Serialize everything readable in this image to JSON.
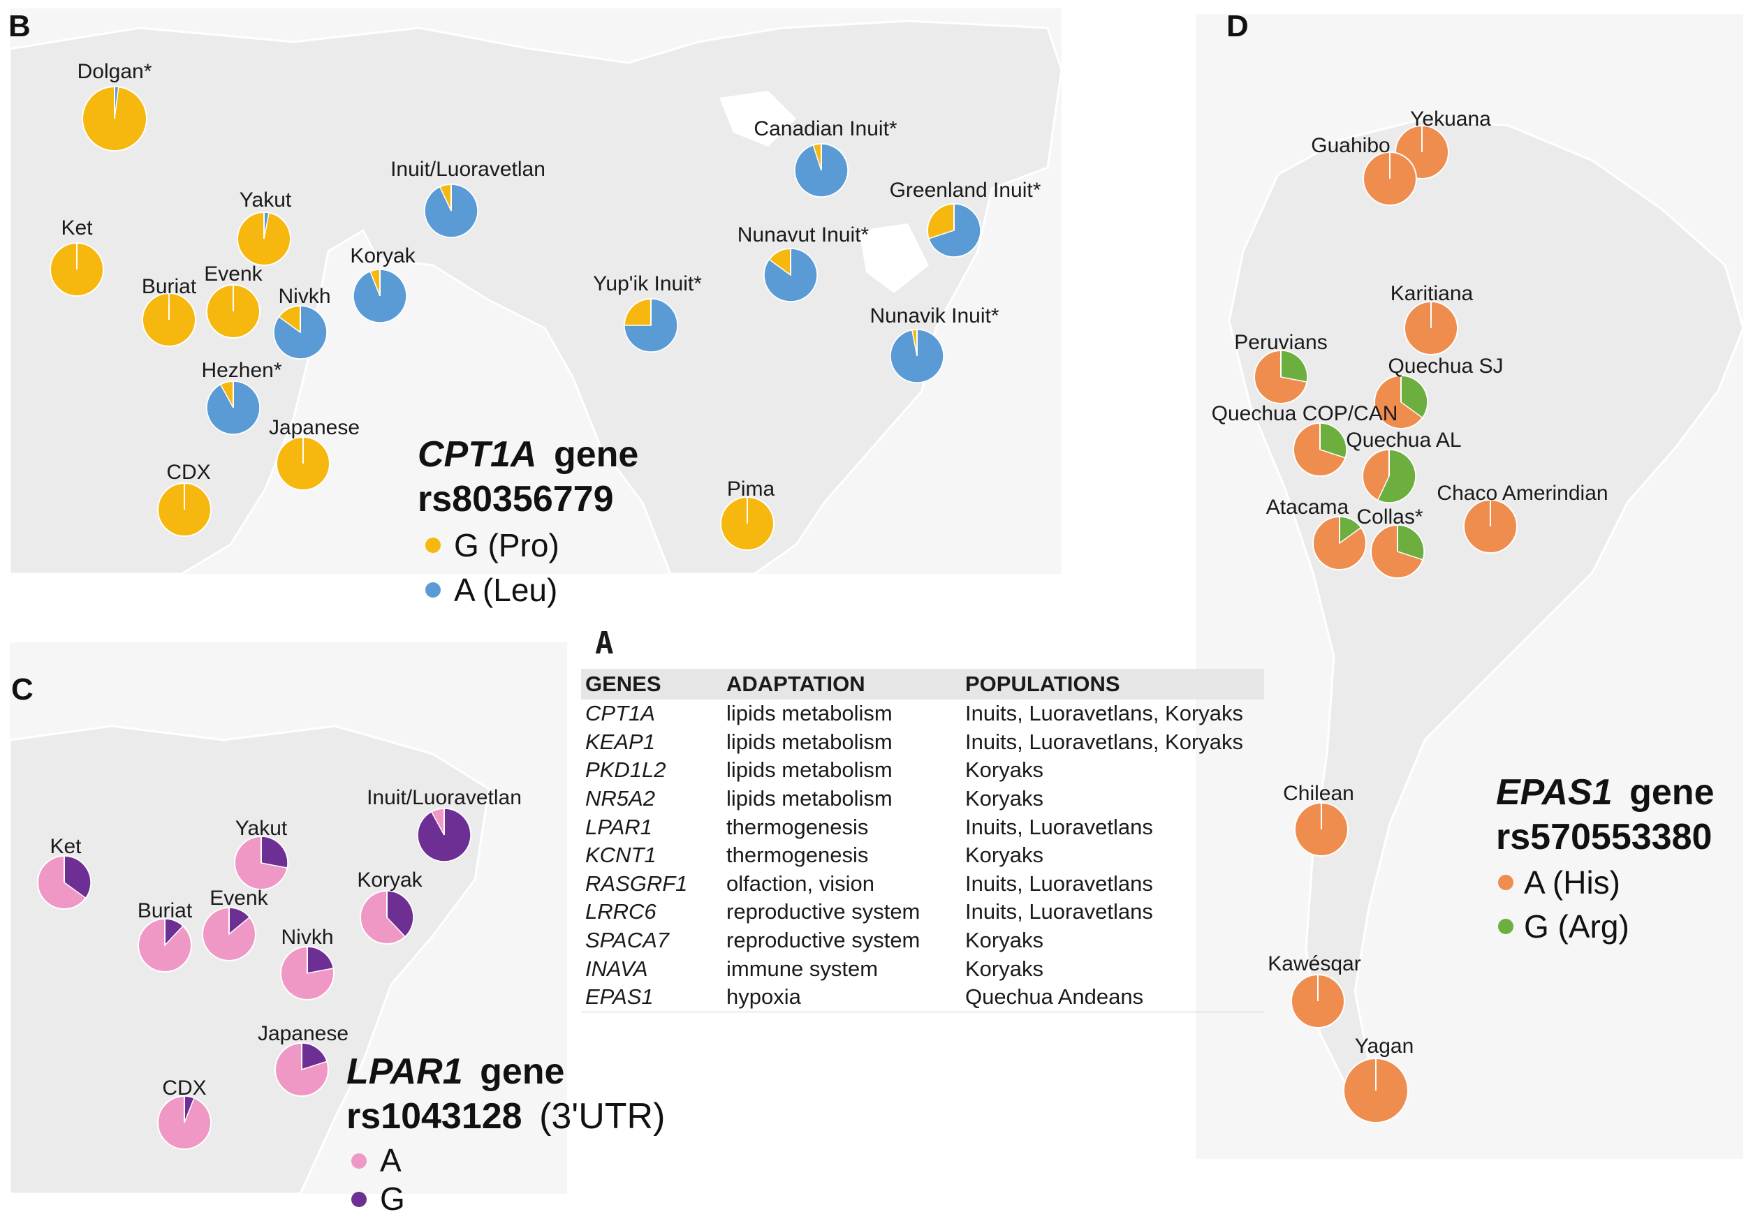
{
  "panels": {
    "a_letter": "A",
    "b_letter": "B",
    "c_letter": "C",
    "d_letter": "D"
  },
  "colors": {
    "yellow": "#f6b80f",
    "blue": "#5a9bd5",
    "pink": "#ef98c6",
    "purple": "#6e2f94",
    "orange": "#ef8d4f",
    "green": "#6caf3f",
    "land": "#ebebeb"
  },
  "table": {
    "headers": [
      "GENES",
      "ADAPTATION",
      "POPULATIONS"
    ],
    "rows": [
      [
        "CPT1A",
        "lipids metabolism",
        "Inuits, Luoravetlans, Koryaks"
      ],
      [
        "KEAP1",
        "lipids metabolism",
        "Inuits, Luoravetlans, Koryaks"
      ],
      [
        "PKD1L2",
        "lipids metabolism",
        "Koryaks"
      ],
      [
        "NR5A2",
        "lipids metabolism",
        "Koryaks"
      ],
      [
        "LPAR1",
        "thermogenesis",
        "Inuits, Luoravetlans"
      ],
      [
        "KCNT1",
        "thermogenesis",
        "Koryaks"
      ],
      [
        "RASGRF1",
        "olfaction, vision",
        "Inuits, Luoravetlans"
      ],
      [
        "LRRC6",
        "reproductive system",
        "Inuits, Luoravetlans"
      ],
      [
        "SPACA7",
        "reproductive system",
        "Koryaks"
      ],
      [
        "INAVA",
        "immune system",
        "Koryaks"
      ],
      [
        "EPAS1",
        "hypoxia",
        "Quechua Andeans"
      ]
    ]
  },
  "map_b": {
    "gene": "CPT1A",
    "gene_suffix": "gene",
    "snp": "rs80356779",
    "legend": [
      {
        "label": "G (Pro)",
        "color": "#f6b80f"
      },
      {
        "label": "A (Leu)",
        "color": "#5a9bd5"
      }
    ],
    "populations": [
      {
        "name": "Dolgan*",
        "fractions": [
          0.98,
          0.02
        ]
      },
      {
        "name": "Ket",
        "fractions": [
          1.0,
          0.0
        ]
      },
      {
        "name": "Yakut",
        "fractions": [
          0.97,
          0.03
        ]
      },
      {
        "name": "Buriat",
        "fractions": [
          1.0,
          0.0
        ]
      },
      {
        "name": "Evenk",
        "fractions": [
          1.0,
          0.0
        ]
      },
      {
        "name": "Nivkh",
        "fractions": [
          0.15,
          0.85
        ]
      },
      {
        "name": "Hezhen*",
        "fractions": [
          0.08,
          0.92
        ]
      },
      {
        "name": "Japanese",
        "fractions": [
          1.0,
          0.0
        ]
      },
      {
        "name": "CDX",
        "fractions": [
          1.0,
          0.0
        ]
      },
      {
        "name": "Koryak",
        "fractions": [
          0.06,
          0.94
        ]
      },
      {
        "name": "Inuit/Luoravetlan",
        "fractions": [
          0.07,
          0.93
        ]
      },
      {
        "name": "Canadian Inuit*",
        "fractions": [
          0.05,
          0.95
        ]
      },
      {
        "name": "Greenland Inuit*",
        "fractions": [
          0.3,
          0.7
        ]
      },
      {
        "name": "Nunavut Inuit*",
        "fractions": [
          0.15,
          0.85
        ]
      },
      {
        "name": "Yup'ik Inuit*",
        "fractions": [
          0.25,
          0.75
        ]
      },
      {
        "name": "Nunavik Inuit*",
        "fractions": [
          0.03,
          0.97
        ]
      },
      {
        "name": "Pima",
        "fractions": [
          1.0,
          0.0
        ]
      }
    ]
  },
  "map_c": {
    "gene": "LPAR1",
    "gene_suffix": "gene",
    "snp": "rs1043128",
    "snp_suffix": "(3'UTR)",
    "legend": [
      {
        "label": "A",
        "color": "#ef98c6"
      },
      {
        "label": "G",
        "color": "#6e2f94"
      }
    ],
    "populations": [
      {
        "name": "Ket",
        "fractions": [
          0.65,
          0.35
        ]
      },
      {
        "name": "Yakut",
        "fractions": [
          0.72,
          0.28
        ]
      },
      {
        "name": "Buriat",
        "fractions": [
          0.88,
          0.12
        ]
      },
      {
        "name": "Evenk",
        "fractions": [
          0.86,
          0.14
        ]
      },
      {
        "name": "Nivkh",
        "fractions": [
          0.78,
          0.22
        ]
      },
      {
        "name": "Koryak",
        "fractions": [
          0.62,
          0.38
        ]
      },
      {
        "name": "Inuit/Luoravetlan",
        "fractions": [
          0.08,
          0.92
        ]
      },
      {
        "name": "Japanese",
        "fractions": [
          0.8,
          0.2
        ]
      },
      {
        "name": "CDX",
        "fractions": [
          0.94,
          0.06
        ]
      }
    ]
  },
  "map_d": {
    "gene": "EPAS1",
    "gene_suffix": "gene",
    "snp": "rs570553380",
    "legend": [
      {
        "label": "A (His)",
        "color": "#ef8d4f"
      },
      {
        "label": "G (Arg)",
        "color": "#6caf3f"
      }
    ],
    "populations": [
      {
        "name": "Yekuana",
        "fractions": [
          1.0,
          0.0
        ]
      },
      {
        "name": "Guahibo",
        "fractions": [
          1.0,
          0.0
        ]
      },
      {
        "name": "Karitiana",
        "fractions": [
          1.0,
          0.0
        ]
      },
      {
        "name": "Peruvians",
        "fractions": [
          0.72,
          0.28
        ]
      },
      {
        "name": "Quechua SJ",
        "fractions": [
          0.65,
          0.35
        ]
      },
      {
        "name": "Quechua COP/CAN",
        "fractions": [
          0.7,
          0.3
        ]
      },
      {
        "name": "Quechua AL",
        "fractions": [
          0.43,
          0.57
        ]
      },
      {
        "name": "Atacama",
        "fractions": [
          0.85,
          0.15
        ]
      },
      {
        "name": "Collas*",
        "fractions": [
          0.7,
          0.3
        ]
      },
      {
        "name": "Chaco Amerindian",
        "fractions": [
          1.0,
          0.0
        ]
      },
      {
        "name": "Chilean",
        "fractions": [
          1.0,
          0.0
        ]
      },
      {
        "name": "Kawésqar",
        "fractions": [
          1.0,
          0.0
        ]
      },
      {
        "name": "Yagan",
        "fractions": [
          1.0,
          0.0
        ]
      }
    ]
  }
}
